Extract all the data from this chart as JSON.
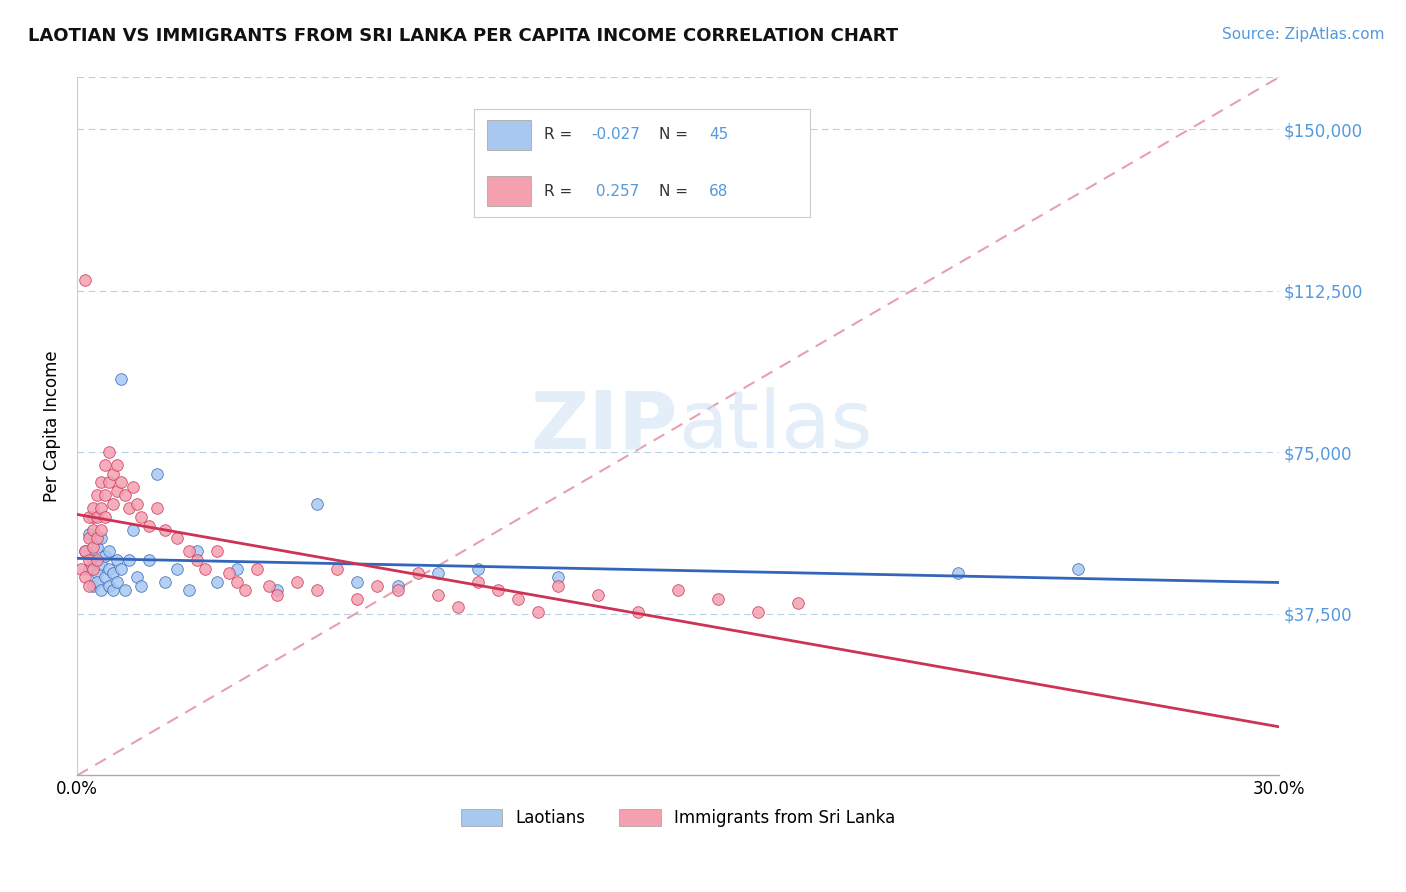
{
  "title": "LAOTIAN VS IMMIGRANTS FROM SRI LANKA PER CAPITA INCOME CORRELATION CHART",
  "source": "Source: ZipAtlas.com",
  "ylabel_label": "Per Capita Income",
  "x_min": 0.0,
  "x_max": 0.3,
  "y_min": 0,
  "y_max": 162000,
  "x_ticks": [
    0.0,
    0.05,
    0.1,
    0.15,
    0.2,
    0.25,
    0.3
  ],
  "x_tick_labels": [
    "0.0%",
    "",
    "",
    "",
    "",
    "",
    "30.0%"
  ],
  "y_ticks": [
    37500,
    75000,
    112500,
    150000
  ],
  "y_tick_labels": [
    "$37,500",
    "$75,000",
    "$112,500",
    "$150,000"
  ],
  "legend_label1": "Laotians",
  "legend_label2": "Immigrants from Sri Lanka",
  "r1": "-0.027",
  "n1": "45",
  "r2": "0.257",
  "n2": "68",
  "color_laotian": "#a8c8f0",
  "color_sri_lanka": "#f4a0b0",
  "trendline_laotian": "#3366bb",
  "trendline_sri_lanka": "#cc3355",
  "trendline_diagonal": "#e8a0b0",
  "watermark_zip": "ZIP",
  "watermark_atlas": "atlas",
  "laotian_x": [
    0.002,
    0.003,
    0.003,
    0.004,
    0.004,
    0.004,
    0.005,
    0.005,
    0.005,
    0.006,
    0.006,
    0.006,
    0.007,
    0.007,
    0.008,
    0.008,
    0.008,
    0.009,
    0.009,
    0.01,
    0.01,
    0.011,
    0.011,
    0.012,
    0.013,
    0.014,
    0.015,
    0.016,
    0.018,
    0.02,
    0.022,
    0.025,
    0.028,
    0.03,
    0.035,
    0.04,
    0.05,
    0.06,
    0.07,
    0.08,
    0.09,
    0.1,
    0.12,
    0.22,
    0.25
  ],
  "laotian_y": [
    52000,
    48000,
    56000,
    50000,
    44000,
    60000,
    47000,
    53000,
    45000,
    55000,
    49000,
    43000,
    51000,
    46000,
    48000,
    44000,
    52000,
    47000,
    43000,
    50000,
    45000,
    92000,
    48000,
    43000,
    50000,
    57000,
    46000,
    44000,
    50000,
    70000,
    45000,
    48000,
    43000,
    52000,
    45000,
    48000,
    43000,
    63000,
    45000,
    44000,
    47000,
    48000,
    46000,
    47000,
    48000
  ],
  "srilanka_x": [
    0.001,
    0.002,
    0.002,
    0.002,
    0.003,
    0.003,
    0.003,
    0.003,
    0.004,
    0.004,
    0.004,
    0.004,
    0.005,
    0.005,
    0.005,
    0.005,
    0.006,
    0.006,
    0.006,
    0.007,
    0.007,
    0.007,
    0.008,
    0.008,
    0.009,
    0.009,
    0.01,
    0.01,
    0.011,
    0.012,
    0.013,
    0.014,
    0.015,
    0.016,
    0.018,
    0.02,
    0.022,
    0.025,
    0.028,
    0.03,
    0.032,
    0.035,
    0.038,
    0.04,
    0.042,
    0.045,
    0.048,
    0.05,
    0.055,
    0.06,
    0.065,
    0.07,
    0.075,
    0.08,
    0.085,
    0.09,
    0.095,
    0.1,
    0.105,
    0.11,
    0.115,
    0.12,
    0.13,
    0.14,
    0.15,
    0.16,
    0.17,
    0.18
  ],
  "srilanka_y": [
    48000,
    52000,
    46000,
    115000,
    55000,
    50000,
    60000,
    44000,
    62000,
    57000,
    48000,
    53000,
    65000,
    60000,
    55000,
    50000,
    68000,
    62000,
    57000,
    72000,
    65000,
    60000,
    75000,
    68000,
    70000,
    63000,
    72000,
    66000,
    68000,
    65000,
    62000,
    67000,
    63000,
    60000,
    58000,
    62000,
    57000,
    55000,
    52000,
    50000,
    48000,
    52000,
    47000,
    45000,
    43000,
    48000,
    44000,
    42000,
    45000,
    43000,
    48000,
    41000,
    44000,
    43000,
    47000,
    42000,
    39000,
    45000,
    43000,
    41000,
    38000,
    44000,
    42000,
    38000,
    43000,
    41000,
    38000,
    40000
  ]
}
